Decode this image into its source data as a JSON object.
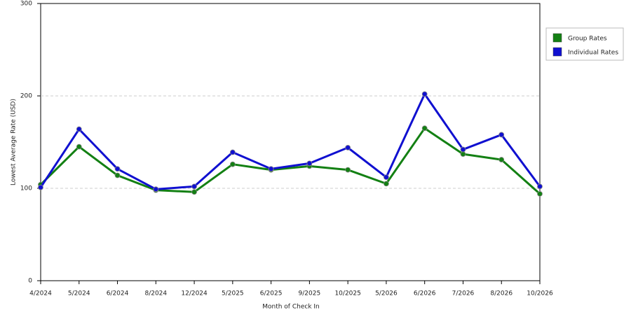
{
  "chart_data": {
    "type": "line",
    "x_label": "Month of Check In",
    "y_label": "Lowest Average Rate (USD)",
    "categories": [
      "4/2024",
      "5/2024",
      "6/2024",
      "8/2024",
      "12/2024",
      "5/2025",
      "6/2025",
      "9/2025",
      "10/2025",
      "5/2026",
      "6/2026",
      "7/2026",
      "8/2026",
      "10/2026"
    ],
    "series": [
      {
        "name": "Group Rates",
        "color": "#138013",
        "values": [
          104,
          145,
          114,
          98,
          96,
          126,
          120,
          124,
          120,
          105,
          165,
          137,
          131,
          94
        ]
      },
      {
        "name": "Individual Rates",
        "color": "#1010d0",
        "values": [
          101,
          164,
          121,
          99,
          102,
          139,
          121,
          127,
          144,
          112,
          202,
          142,
          158,
          102
        ]
      }
    ],
    "ylim": [
      0,
      300
    ],
    "yticks": [
      0,
      100,
      200,
      300
    ],
    "grid": true,
    "legend": "right"
  }
}
